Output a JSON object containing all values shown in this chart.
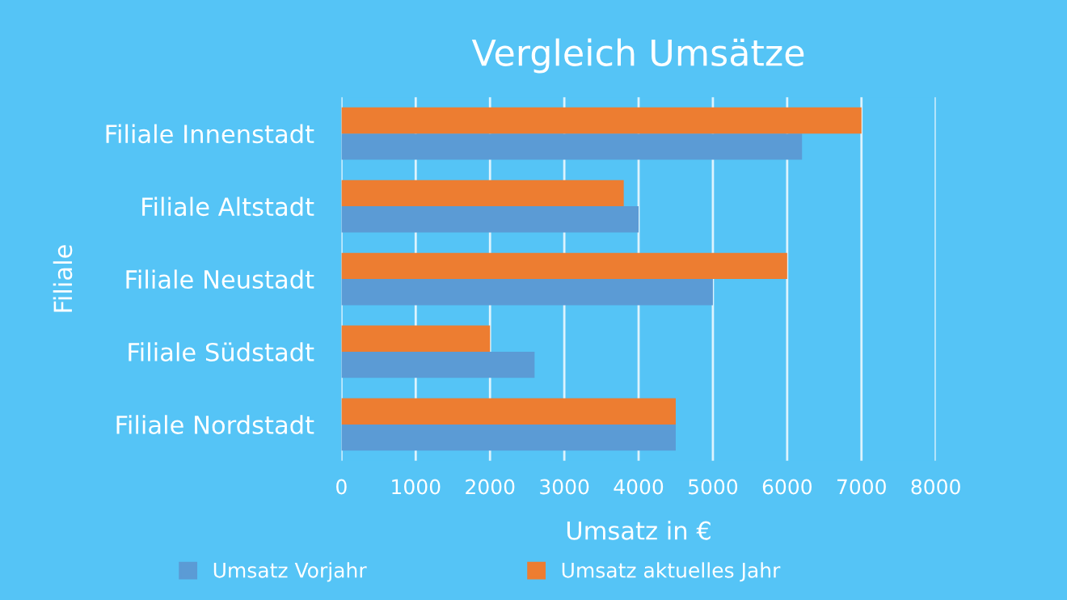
{
  "chart_data": {
    "type": "bar",
    "orientation": "horizontal",
    "title": "Vergleich Umsätze",
    "xlabel": "Umsatz in €",
    "ylabel": "Filiale",
    "categories": [
      "Filiale Innenstadt",
      "Filiale Altstadt",
      "Filiale Neustadt",
      "Filiale Südstadt",
      "Filiale Nordstadt"
    ],
    "series": [
      {
        "name": "Umsatz Vorjahr",
        "color": "#5b9bd5",
        "values": [
          6200,
          4000,
          5000,
          2600,
          4500
        ]
      },
      {
        "name": "Umsatz aktuelles Jahr",
        "color": "#ed7d31",
        "values": [
          7000,
          3800,
          6000,
          2000,
          4500
        ]
      }
    ],
    "xlim": [
      0,
      8000
    ],
    "xticks": [
      0,
      1000,
      2000,
      3000,
      4000,
      5000,
      6000,
      7000,
      8000
    ],
    "grid": "x",
    "legend": "bottom"
  }
}
